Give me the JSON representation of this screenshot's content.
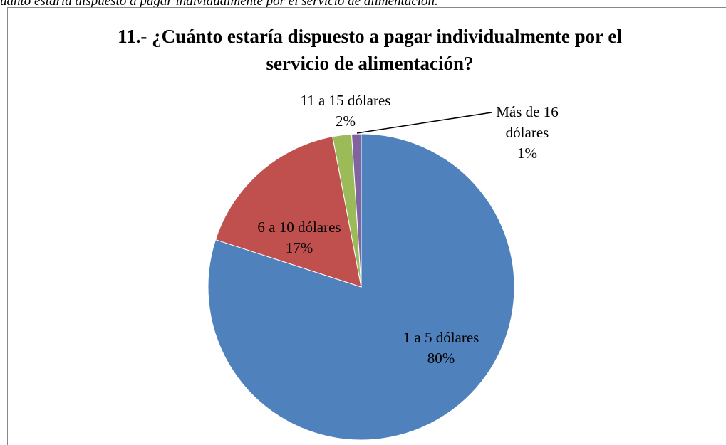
{
  "caption": "uánto estaría dispuesto a pagar individualmente por el servicio de alimentación.",
  "chart_data": {
    "type": "pie",
    "title": "11.- ¿Cuánto estaría dispuesto a pagar individualmente por el servicio de alimentación?",
    "categories": [
      "1 a 5 dólares",
      "6 a 10 dólares",
      "11 a 15 dólares",
      "Más de 16 dólares"
    ],
    "values": [
      80,
      17,
      2,
      1
    ],
    "value_labels": [
      "80%",
      "17%",
      "2%",
      "1%"
    ],
    "colors": [
      "#4f81bd",
      "#c0504d",
      "#9bbb59",
      "#8064a2"
    ]
  }
}
